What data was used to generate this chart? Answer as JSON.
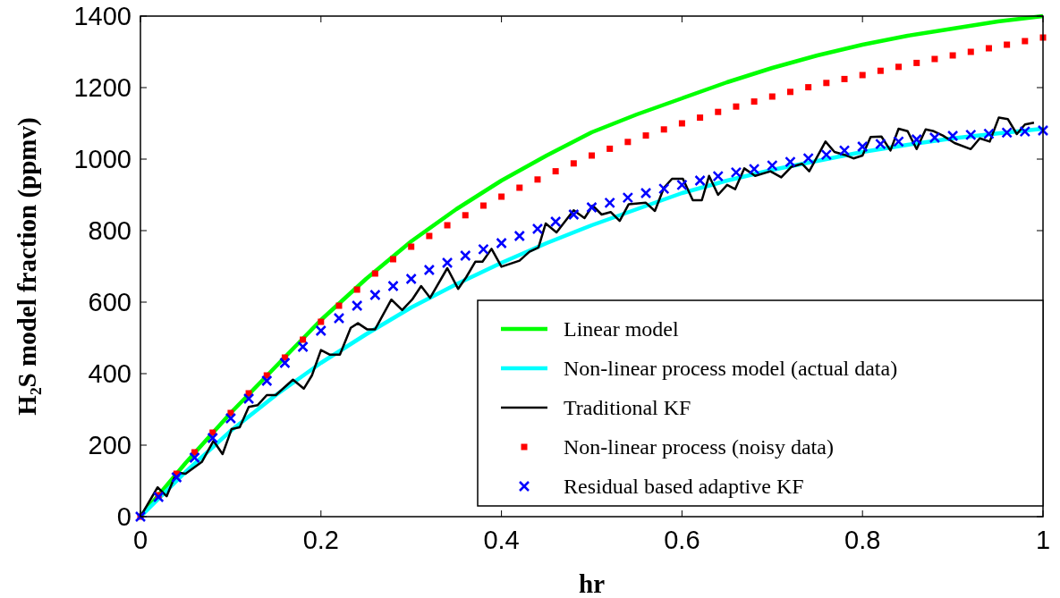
{
  "chart_data": {
    "type": "line",
    "xlabel": "hr",
    "ylabel": "H₂S model fraction (ppmv)",
    "xlim": [
      0,
      1
    ],
    "ylim": [
      0,
      1400
    ],
    "xticks": [
      0,
      0.2,
      0.4,
      0.6,
      0.8,
      1
    ],
    "yticks": [
      0,
      200,
      400,
      600,
      800,
      1000,
      1200,
      1400
    ],
    "grid": false,
    "legend": "bottom right",
    "line_style": "solid",
    "series": [
      {
        "name": "Linear model",
        "color": "#00ff00",
        "x": [
          0,
          0.05,
          0.1,
          0.15,
          0.2,
          0.25,
          0.3,
          0.35,
          0.4,
          0.45,
          0.5,
          0.55,
          0.6,
          0.65,
          0.7,
          0.75,
          0.8,
          0.85,
          0.9,
          0.95,
          1
        ],
        "values": [
          0,
          150,
          290,
          420,
          550,
          665,
          770,
          860,
          940,
          1010,
          1075,
          1125,
          1170,
          1215,
          1255,
          1290,
          1320,
          1345,
          1365,
          1385,
          1400
        ]
      },
      {
        "name": "Non-linear process model (actual data)",
        "color": "#00ffff",
        "x": [
          0,
          0.05,
          0.1,
          0.15,
          0.2,
          0.25,
          0.3,
          0.35,
          0.4,
          0.45,
          0.5,
          0.55,
          0.6,
          0.65,
          0.7,
          0.75,
          0.8,
          0.85,
          0.9,
          0.95,
          1
        ],
        "values": [
          0,
          125,
          240,
          340,
          430,
          510,
          585,
          650,
          710,
          765,
          815,
          860,
          905,
          940,
          970,
          995,
          1020,
          1040,
          1058,
          1072,
          1085
        ]
      },
      {
        "name": "Traditional KF",
        "color": "#000000",
        "x": [
          0,
          0.019,
          0.029,
          0.04,
          0.05,
          0.068,
          0.081,
          0.091,
          0.101,
          0.11,
          0.12,
          0.13,
          0.14,
          0.15,
          0.169,
          0.181,
          0.19,
          0.2,
          0.21,
          0.221,
          0.233,
          0.241,
          0.251,
          0.26,
          0.278,
          0.29,
          0.301,
          0.311,
          0.321,
          0.34,
          0.352,
          0.361,
          0.371,
          0.379,
          0.389,
          0.4,
          0.42,
          0.431,
          0.441,
          0.449,
          0.461,
          0.48,
          0.492,
          0.501,
          0.511,
          0.521,
          0.531,
          0.541,
          0.56,
          0.57,
          0.58,
          0.589,
          0.601,
          0.612,
          0.622,
          0.63,
          0.64,
          0.65,
          0.659,
          0.669,
          0.681,
          0.698,
          0.71,
          0.721,
          0.733,
          0.741,
          0.759,
          0.769,
          0.78,
          0.79,
          0.8,
          0.809,
          0.821,
          0.831,
          0.84,
          0.85,
          0.86,
          0.87,
          0.879,
          0.889,
          0.902,
          0.92,
          0.93,
          0.941,
          0.951,
          0.961,
          0.971,
          0.98,
          0.99
        ],
        "values": [
          0,
          82,
          57,
          124,
          120,
          153,
          212,
          175,
          245,
          250,
          307,
          312,
          340,
          340,
          383,
          358,
          395,
          466,
          453,
          453,
          528,
          541,
          524,
          524,
          607,
          578,
          607,
          645,
          612,
          695,
          637,
          670,
          713,
          713,
          749,
          699,
          716,
          741,
          753,
          820,
          795,
          857,
          835,
          870,
          845,
          852,
          827,
          874,
          878,
          855,
          920,
          945,
          945,
          885,
          885,
          953,
          900,
          928,
          916,
          974,
          953,
          966,
          949,
          978,
          987,
          966,
          1049,
          1020,
          1012,
          1002,
          1010,
          1062,
          1063,
          1024,
          1085,
          1078,
          1028,
          1083,
          1078,
          1066,
          1045,
          1028,
          1058,
          1049,
          1116,
          1112,
          1070,
          1097,
          1102
        ]
      },
      {
        "name": "Non-linear process (noisy data)",
        "type": "scatter",
        "marker": "square",
        "color": "#ff0000",
        "x": [
          0,
          0.02,
          0.04,
          0.06,
          0.08,
          0.1,
          0.12,
          0.14,
          0.16,
          0.18,
          0.2,
          0.22,
          0.24,
          0.26,
          0.28,
          0.3,
          0.32,
          0.34,
          0.36,
          0.38,
          0.4,
          0.42,
          0.44,
          0.46,
          0.48,
          0.5,
          0.52,
          0.54,
          0.56,
          0.58,
          0.6,
          0.62,
          0.64,
          0.66,
          0.68,
          0.7,
          0.72,
          0.74,
          0.76,
          0.78,
          0.8,
          0.82,
          0.84,
          0.86,
          0.88,
          0.9,
          0.92,
          0.94,
          0.96,
          0.98,
          1
        ],
        "values": [
          0,
          60,
          120,
          180,
          235,
          290,
          345,
          395,
          445,
          495,
          545,
          590,
          635,
          680,
          720,
          755,
          785,
          815,
          843,
          870,
          895,
          920,
          943,
          966,
          988,
          1010,
          1029,
          1048,
          1066,
          1083,
          1100,
          1116,
          1132,
          1147,
          1161,
          1175,
          1188,
          1201,
          1213,
          1224,
          1235,
          1247,
          1258,
          1269,
          1280,
          1290,
          1300,
          1310,
          1320,
          1330,
          1340
        ]
      },
      {
        "name": "Residual based adaptive KF",
        "type": "scatter",
        "marker": "cross",
        "color": "#0000ff",
        "x": [
          0,
          0.02,
          0.04,
          0.06,
          0.08,
          0.1,
          0.12,
          0.14,
          0.16,
          0.18,
          0.2,
          0.22,
          0.24,
          0.26,
          0.28,
          0.3,
          0.32,
          0.34,
          0.36,
          0.38,
          0.4,
          0.42,
          0.44,
          0.46,
          0.48,
          0.5,
          0.52,
          0.54,
          0.56,
          0.58,
          0.6,
          0.62,
          0.64,
          0.66,
          0.68,
          0.7,
          0.72,
          0.74,
          0.76,
          0.78,
          0.8,
          0.82,
          0.84,
          0.86,
          0.88,
          0.9,
          0.92,
          0.94,
          0.96,
          0.98,
          1
        ],
        "values": [
          0,
          55,
          110,
          165,
          220,
          275,
          330,
          380,
          430,
          475,
          520,
          555,
          590,
          620,
          645,
          665,
          690,
          710,
          730,
          748,
          765,
          785,
          805,
          825,
          845,
          865,
          878,
          892,
          905,
          917,
          928,
          940,
          952,
          963,
          972,
          982,
          992,
          1002,
          1012,
          1024,
          1035,
          1042,
          1049,
          1055,
          1060,
          1065,
          1068,
          1071,
          1074,
          1077,
          1080
        ]
      }
    ]
  }
}
